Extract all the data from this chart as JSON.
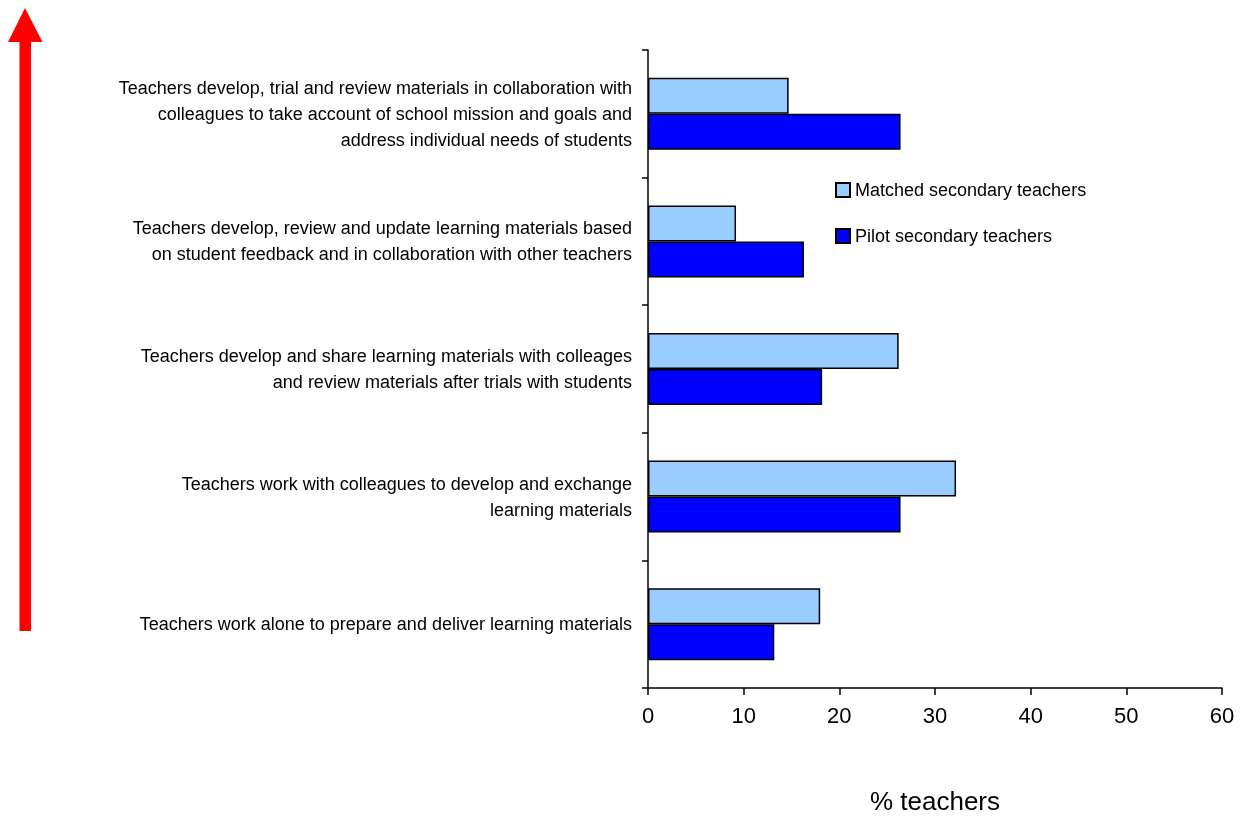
{
  "chart_data": {
    "type": "bar",
    "orientation": "horizontal",
    "xlabel": "% teachers",
    "categories": [
      "Teachers develop, trial and review materials in collaboration with\ncolleagues to take account of school mission and goals and\naddress individual needs of students",
      "Teachers develop, review and update learning materials based\non student feedback and in collaboration with other teachers",
      "Teachers develop and share learning materials with colleages\nand review materials after trials with students",
      "Teachers work with colleagues to develop and exchange\nlearning materials",
      "Teachers work alone to prepare and deliver learning materials"
    ],
    "series": [
      {
        "name": "Matched secondary teachers",
        "color": "#99ccff",
        "values": [
          14.7,
          9.2,
          26.2,
          32.2,
          18.0
        ]
      },
      {
        "name": "Pilot secondary teachers",
        "color": "#0000ff",
        "values": [
          26.4,
          16.3,
          18.2,
          26.4,
          13.2
        ]
      }
    ],
    "xlim": [
      0,
      60
    ],
    "xticks": [
      0,
      10,
      20,
      30,
      40,
      50,
      60
    ],
    "legend": "top right"
  }
}
